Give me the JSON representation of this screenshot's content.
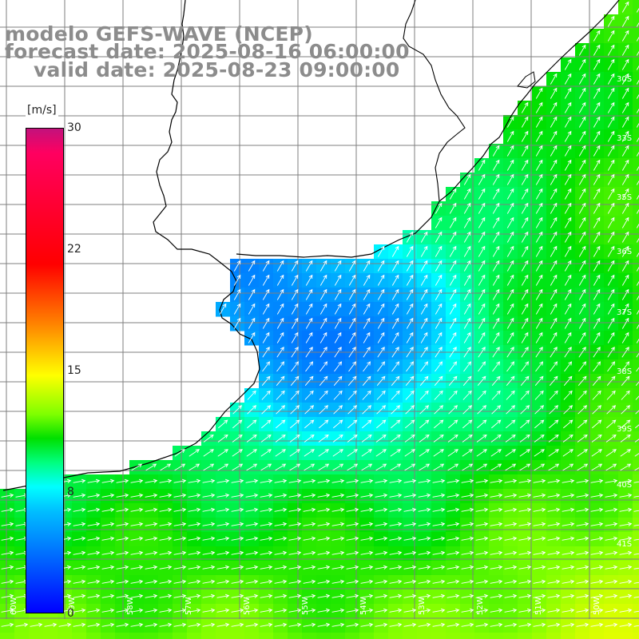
{
  "title": {
    "line1": "modelo GEFS-WAVE (NCEP)",
    "line2": "forecast date: 2025-08-16 06:00:00",
    "line3": "valid date: 2025-08-23 09:00:00"
  },
  "colorbar": {
    "unit": "[m/s]",
    "min": 0,
    "max": 30,
    "ticks": [
      "30",
      "22",
      "15",
      "8",
      "0"
    ],
    "tick_values": [
      30,
      22,
      15,
      8,
      0
    ]
  },
  "map": {
    "variable": "wind speed and direction",
    "field_colors": {
      "land": "#ffffff",
      "coast_line": "#000000",
      "grid_line": "#7f7f7f",
      "arrows": "#ffffff"
    },
    "latitude_labels": [
      "30S",
      "33S",
      "35S",
      "36S",
      "37S",
      "38S",
      "39S",
      "40S",
      "41S"
    ],
    "longitude_labels": [
      "60W",
      "59W",
      "58W",
      "57W",
      "56W",
      "55W",
      "54W",
      "53W",
      "52W",
      "51W",
      "50W"
    ],
    "wind_pattern": "northeastward flow near coast turning eastward offshore in the south"
  }
}
